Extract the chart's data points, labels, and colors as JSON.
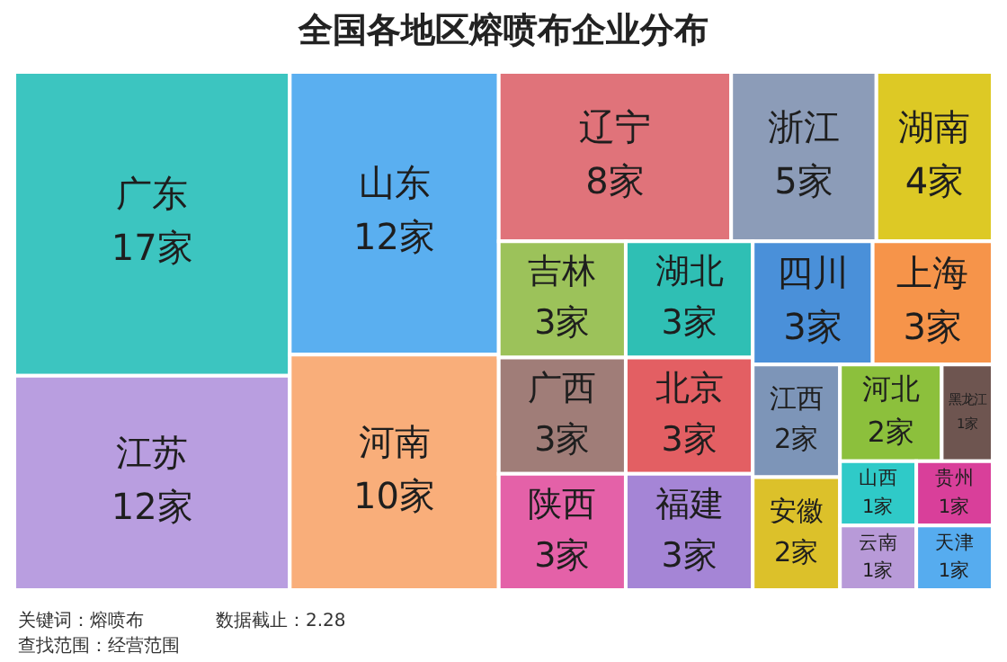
{
  "chart_data": {
    "type": "other",
    "title": "全国各地区熔喷布企业分布",
    "categories": [
      "广东",
      "江苏",
      "山东",
      "河南",
      "辽宁",
      "浙江",
      "湖南",
      "吉林",
      "广西",
      "陕西",
      "湖北",
      "北京",
      "福建",
      "四川",
      "上海",
      "江西",
      "安徽",
      "河北",
      "黑龙江",
      "山西",
      "云南",
      "贵州",
      "天津"
    ],
    "values": [
      17,
      12,
      12,
      10,
      8,
      5,
      4,
      3,
      3,
      3,
      3,
      3,
      3,
      3,
      3,
      2,
      2,
      2,
      1,
      1,
      1,
      1,
      1
    ],
    "value_labels": [
      "17家",
      "12家",
      "12家",
      "10家",
      "8家",
      "5家",
      "4家",
      "3家",
      "3家",
      "3家",
      "3家",
      "3家",
      "3家",
      "3家",
      "3家",
      "2家",
      "2家",
      "2家",
      "1家",
      "1家",
      "1家",
      "1家",
      "1家"
    ],
    "colors": [
      "#3cc5c0",
      "#b99ee0",
      "#5aaff0",
      "#f9ae7a",
      "#e0737a",
      "#8c9cb8",
      "#ddc925",
      "#9cc25a",
      "#a07d78",
      "#e461a8",
      "#2fbfb4",
      "#e35f63",
      "#a585d6",
      "#4a90d9",
      "#f6944a",
      "#7d95b8",
      "#dcc12a",
      "#8cc03c",
      "#6e5550",
      "#2fcac8",
      "#b89ad8",
      "#d93f9a",
      "#56acef"
    ],
    "annotations": [
      "关键词：熔喷布",
      "数据截止：2.28",
      "查找范围：经营范围"
    ]
  }
}
